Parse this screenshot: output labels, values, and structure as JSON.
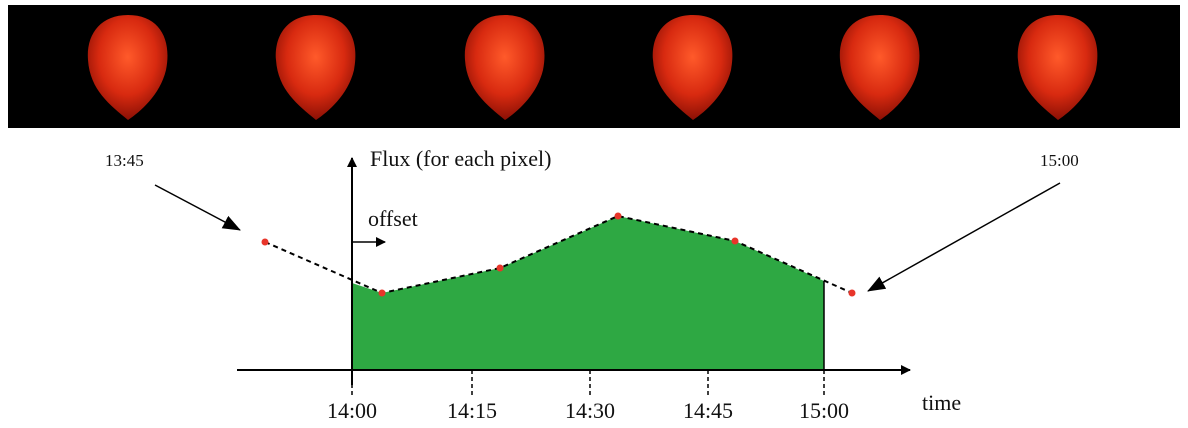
{
  "labels": {
    "left_time": "13:45",
    "right_time": "15:00",
    "y_axis": "Flux (for each pixel)",
    "offset": "offset",
    "x_axis": "time"
  },
  "ticks": [
    "14:00",
    "14:15",
    "14:30",
    "14:45",
    "15:00"
  ]
}
